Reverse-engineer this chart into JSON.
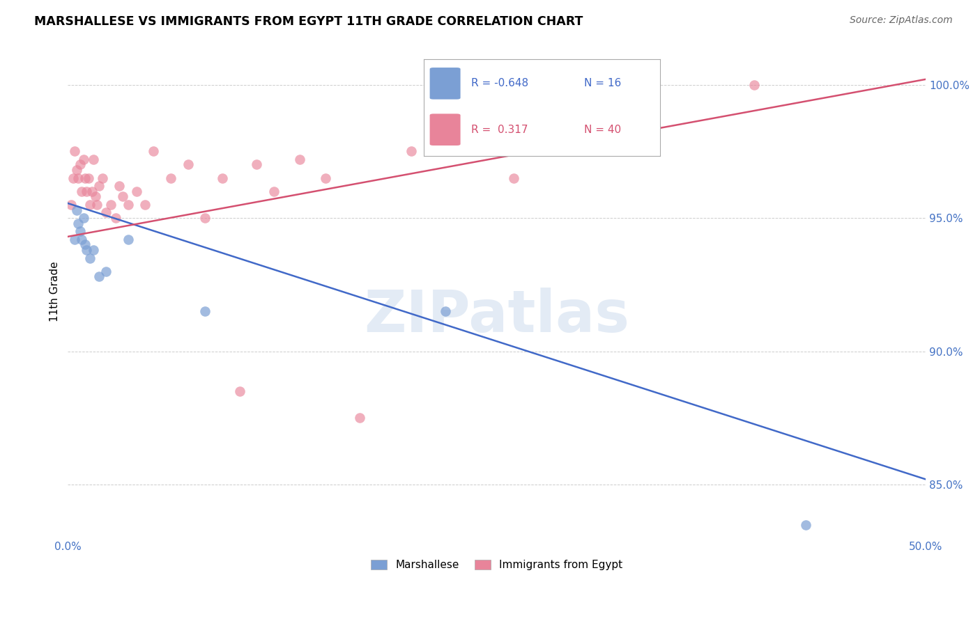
{
  "title": "MARSHALLESE VS IMMIGRANTS FROM EGYPT 11TH GRADE CORRELATION CHART",
  "source": "Source: ZipAtlas.com",
  "ylabel": "11th Grade",
  "xlim": [
    0.0,
    50.0
  ],
  "ylim": [
    83.0,
    101.5
  ],
  "y_ticks": [
    85.0,
    90.0,
    95.0,
    100.0
  ],
  "x_tick_positions": [
    0.0,
    10.0,
    20.0,
    30.0,
    40.0,
    50.0
  ],
  "x_tick_labels": [
    "0.0%",
    "",
    "",
    "",
    "",
    "50.0%"
  ],
  "legend_r_blue": "-0.648",
  "legend_n_blue": "16",
  "legend_r_pink": "0.317",
  "legend_n_pink": "40",
  "blue_color": "#7B9FD4",
  "pink_color": "#E8849A",
  "blue_line_color": "#4169C8",
  "pink_line_color": "#D45070",
  "watermark": "ZIPatlas",
  "blue_line_x": [
    0.0,
    50.0
  ],
  "blue_line_y": [
    95.55,
    85.2
  ],
  "pink_line_x": [
    0.0,
    50.0
  ],
  "pink_line_y": [
    94.3,
    100.2
  ],
  "blue_scatter_x": [
    0.4,
    0.5,
    0.6,
    0.7,
    0.8,
    0.9,
    1.0,
    1.1,
    1.3,
    1.5,
    1.8,
    2.2,
    3.5,
    8.0,
    22.0,
    43.0
  ],
  "blue_scatter_y": [
    94.2,
    95.3,
    94.8,
    94.5,
    94.2,
    95.0,
    94.0,
    93.8,
    93.5,
    93.8,
    92.8,
    93.0,
    94.2,
    91.5,
    91.5,
    83.5
  ],
  "pink_scatter_x": [
    0.2,
    0.3,
    0.4,
    0.5,
    0.6,
    0.7,
    0.8,
    0.9,
    1.0,
    1.1,
    1.2,
    1.3,
    1.4,
    1.5,
    1.6,
    1.7,
    1.8,
    2.0,
    2.2,
    2.5,
    2.8,
    3.0,
    3.2,
    3.5,
    4.0,
    4.5,
    5.0,
    6.0,
    7.0,
    8.0,
    9.0,
    10.0,
    11.0,
    12.0,
    13.5,
    15.0,
    17.0,
    20.0,
    26.0,
    40.0
  ],
  "pink_scatter_y": [
    95.5,
    96.5,
    97.5,
    96.8,
    96.5,
    97.0,
    96.0,
    97.2,
    96.5,
    96.0,
    96.5,
    95.5,
    96.0,
    97.2,
    95.8,
    95.5,
    96.2,
    96.5,
    95.2,
    95.5,
    95.0,
    96.2,
    95.8,
    95.5,
    96.0,
    95.5,
    97.5,
    96.5,
    97.0,
    95.0,
    96.5,
    88.5,
    97.0,
    96.0,
    97.2,
    96.5,
    87.5,
    97.5,
    96.5,
    100.0
  ]
}
